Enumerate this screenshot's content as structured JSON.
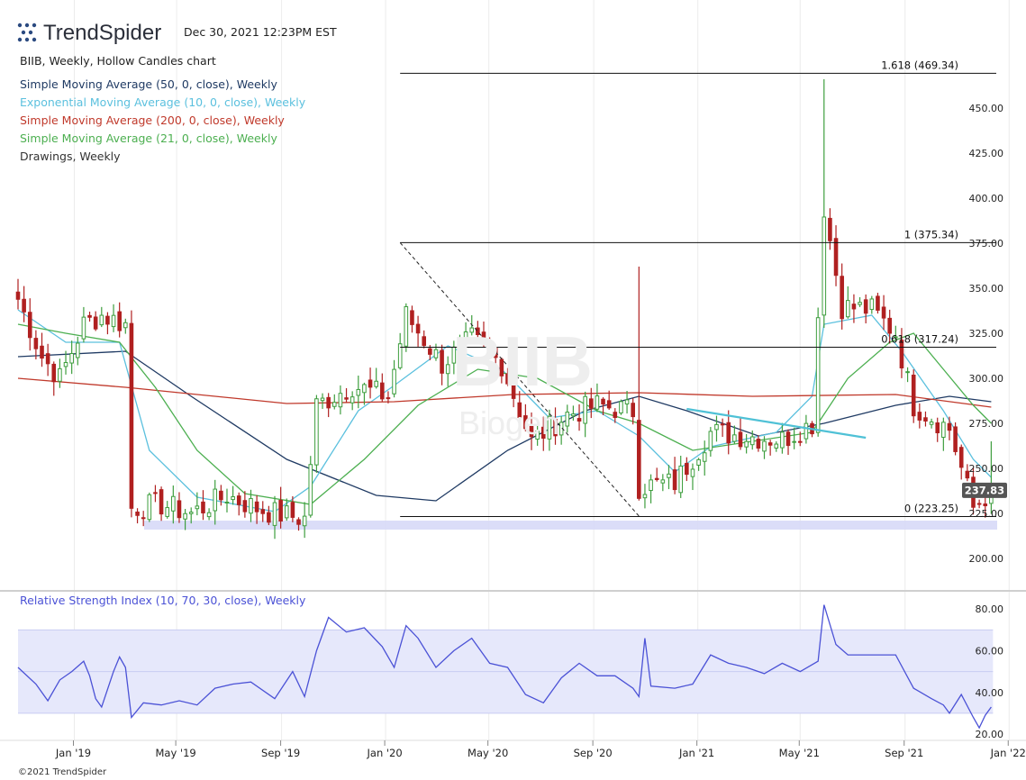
{
  "header": {
    "logo_text": "TrendSpider",
    "timestamp": "Dec 30, 2021 12:23PM EST",
    "chart_title": "BIIB, Weekly, Hollow Candles chart",
    "watermark_symbol": "BIIB",
    "watermark_name": "Biogen"
  },
  "legend": [
    {
      "label": "Simple Moving Average (50, 0, close), Weekly",
      "color": "#1f3a63"
    },
    {
      "label": "Exponential Moving Average (10, 0, close), Weekly",
      "color": "#5bc0de"
    },
    {
      "label": "Simple Moving Average (200, 0, close), Weekly",
      "color": "#c0392b"
    },
    {
      "label": "Simple Moving Average (21, 0, close), Weekly",
      "color": "#4caf50"
    },
    {
      "label": "Drawings, Weekly",
      "color": "#333333"
    }
  ],
  "colors": {
    "up": "#3e9e3e",
    "down": "#b02020",
    "fib": "#111111",
    "trend": "#4fc1d6",
    "support_zone": "#d7d9f7",
    "rsi_line": "#4b52d6",
    "rsi_band": "#e6e8fb",
    "price_badge": "#555555"
  },
  "footer": {
    "copyright": "©2021 TrendSpider"
  },
  "chart_data": {
    "type": "candlestick",
    "symbol": "BIIB",
    "interval": "Weekly",
    "x_ticks": [
      "Jan '19",
      "May '19",
      "Sep '19",
      "Jan '20",
      "May '20",
      "Sep '20",
      "Jan '21",
      "May '21",
      "Sep '21",
      "Jan '22"
    ],
    "y_ticks": [
      "200.00",
      "225.00",
      "250.00",
      "275.00",
      "300.00",
      "325.00",
      "350.00",
      "375.00",
      "400.00",
      "425.00",
      "450.00"
    ],
    "ylim": [
      190,
      478
    ],
    "last_price": "237.83",
    "fib_levels": [
      {
        "label": "1.618 (469.34)",
        "value": 469.34
      },
      {
        "label": "1 (375.34)",
        "value": 375.34
      },
      {
        "label": "0.618 (317.24)",
        "value": 317.24
      },
      {
        "label": "0 (223.25)",
        "value": 223.25
      }
    ],
    "support_zone": [
      216,
      221
    ],
    "diagonal_line": {
      "from": [
        "2020-02-01",
        375.3
      ],
      "to": [
        "2020-11-07",
        223.5
      ]
    },
    "trendline": {
      "from": [
        "2021-01-02",
        283
      ],
      "to": [
        "2021-07-31",
        267
      ]
    },
    "anchors": [
      {
        "date": "2018-11-10",
        "price": 344
      },
      {
        "date": "2018-12-08",
        "price": 312
      },
      {
        "date": "2018-12-29",
        "price": 300
      },
      {
        "date": "2019-01-26",
        "price": 330
      },
      {
        "date": "2019-02-16",
        "price": 335
      },
      {
        "date": "2019-03-16",
        "price": 330
      },
      {
        "date": "2019-03-23",
        "price": 228
      },
      {
        "date": "2019-04-27",
        "price": 230
      },
      {
        "date": "2019-06-01",
        "price": 225
      },
      {
        "date": "2019-07-13",
        "price": 235
      },
      {
        "date": "2019-08-17",
        "price": 228
      },
      {
        "date": "2019-09-07",
        "price": 225
      },
      {
        "date": "2019-10-12",
        "price": 222
      },
      {
        "date": "2019-10-26",
        "price": 285
      },
      {
        "date": "2019-12-07",
        "price": 296
      },
      {
        "date": "2020-01-18",
        "price": 290
      },
      {
        "date": "2020-02-08",
        "price": 335
      },
      {
        "date": "2020-03-21",
        "price": 308
      },
      {
        "date": "2020-04-25",
        "price": 322
      },
      {
        "date": "2020-05-30",
        "price": 308
      },
      {
        "date": "2020-07-04",
        "price": 265
      },
      {
        "date": "2020-08-15",
        "price": 280
      },
      {
        "date": "2020-09-19",
        "price": 285
      },
      {
        "date": "2020-10-31",
        "price": 282
      },
      {
        "date": "2020-11-07",
        "price": 240
      },
      {
        "date": "2020-12-19",
        "price": 242
      },
      {
        "date": "2021-01-30",
        "price": 270
      },
      {
        "date": "2021-03-13",
        "price": 268
      },
      {
        "date": "2021-04-24",
        "price": 266
      },
      {
        "date": "2021-05-29",
        "price": 275
      },
      {
        "date": "2021-06-12",
        "price": 395
      },
      {
        "date": "2021-07-03",
        "price": 340
      },
      {
        "date": "2021-08-07",
        "price": 338
      },
      {
        "date": "2021-09-04",
        "price": 325
      },
      {
        "date": "2021-09-25",
        "price": 285
      },
      {
        "date": "2021-11-06",
        "price": 272
      },
      {
        "date": "2021-12-04",
        "price": 228
      },
      {
        "date": "2021-12-25",
        "price": 237.83
      }
    ],
    "spikes": [
      {
        "date": "2020-11-07",
        "high": 362
      },
      {
        "date": "2021-06-12",
        "high": 466
      },
      {
        "date": "2021-12-25",
        "high": 265
      }
    ],
    "moving_averages": [
      {
        "name": "Simple Moving Average (50, 0, close), Weekly",
        "points": [
          [
            "2018-11-10",
            312
          ],
          [
            "2019-03-16",
            315
          ],
          [
            "2019-06-01",
            290
          ],
          [
            "2019-09-21",
            255
          ],
          [
            "2020-01-04",
            235
          ],
          [
            "2020-03-14",
            232
          ],
          [
            "2020-06-06",
            260
          ],
          [
            "2020-09-05",
            282
          ],
          [
            "2020-11-07",
            290
          ],
          [
            "2021-01-02",
            282
          ],
          [
            "2021-03-27",
            268
          ],
          [
            "2021-06-12",
            275
          ],
          [
            "2021-09-04",
            285
          ],
          [
            "2021-11-06",
            290
          ],
          [
            "2021-12-25",
            287
          ]
        ]
      },
      {
        "name": "Exponential Moving Average (10, 0, close), Weekly",
        "points": [
          [
            "2018-11-10",
            338
          ],
          [
            "2019-01-05",
            320
          ],
          [
            "2019-03-09",
            320
          ],
          [
            "2019-04-13",
            260
          ],
          [
            "2019-06-08",
            234
          ],
          [
            "2019-09-07",
            226
          ],
          [
            "2019-10-19",
            240
          ],
          [
            "2019-12-14",
            282
          ],
          [
            "2020-01-25",
            296
          ],
          [
            "2020-03-28",
            318
          ],
          [
            "2020-05-30",
            305
          ],
          [
            "2020-07-25",
            278
          ],
          [
            "2020-09-19",
            282
          ],
          [
            "2020-11-07",
            268
          ],
          [
            "2020-12-19",
            248
          ],
          [
            "2021-01-30",
            262
          ],
          [
            "2021-04-17",
            270
          ],
          [
            "2021-05-29",
            290
          ],
          [
            "2021-06-12",
            330
          ],
          [
            "2021-08-07",
            335
          ],
          [
            "2021-09-11",
            315
          ],
          [
            "2021-10-30",
            282
          ],
          [
            "2021-12-04",
            255
          ],
          [
            "2021-12-25",
            245
          ]
        ]
      },
      {
        "name": "Simple Moving Average (200, 0, close), Weekly",
        "points": [
          [
            "2018-11-10",
            300
          ],
          [
            "2019-03-16",
            295
          ],
          [
            "2019-09-21",
            286
          ],
          [
            "2020-01-25",
            287
          ],
          [
            "2020-06-13",
            291
          ],
          [
            "2020-11-07",
            292
          ],
          [
            "2021-03-20",
            290
          ],
          [
            "2021-09-04",
            291
          ],
          [
            "2021-12-25",
            284
          ]
        ]
      },
      {
        "name": "Simple Moving Average (21, 0, close), Weekly",
        "points": [
          [
            "2018-11-10",
            330
          ],
          [
            "2019-01-05",
            325
          ],
          [
            "2019-03-09",
            320
          ],
          [
            "2019-04-20",
            295
          ],
          [
            "2019-06-08",
            260
          ],
          [
            "2019-08-03",
            236
          ],
          [
            "2019-10-19",
            230
          ],
          [
            "2019-12-21",
            255
          ],
          [
            "2020-02-22",
            285
          ],
          [
            "2020-05-02",
            305
          ],
          [
            "2020-07-11",
            300
          ],
          [
            "2020-09-19",
            282
          ],
          [
            "2020-11-07",
            275
          ],
          [
            "2021-01-09",
            260
          ],
          [
            "2021-03-20",
            265
          ],
          [
            "2021-05-29",
            270
          ],
          [
            "2021-07-10",
            300
          ],
          [
            "2021-08-28",
            320
          ],
          [
            "2021-09-25",
            325
          ],
          [
            "2021-10-30",
            305
          ],
          [
            "2021-12-04",
            285
          ],
          [
            "2021-12-25",
            275
          ]
        ]
      }
    ],
    "rsi": {
      "label": "Relative Strength Index (10, 70, 30, close), Weekly",
      "y_ticks": [
        "20.00",
        "40.00",
        "60.00",
        "80.00"
      ],
      "ylim": [
        17,
        87
      ],
      "overbought": 70,
      "oversold": 30,
      "midline": 50,
      "points": [
        [
          "2018-11-10",
          52
        ],
        [
          "2018-12-01",
          44
        ],
        [
          "2018-12-15",
          36
        ],
        [
          "2018-12-29",
          46
        ],
        [
          "2019-01-12",
          50
        ],
        [
          "2019-01-26",
          55
        ],
        [
          "2019-02-02",
          48
        ],
        [
          "2019-02-09",
          37
        ],
        [
          "2019-02-16",
          33
        ],
        [
          "2019-03-02",
          50
        ],
        [
          "2019-03-09",
          57
        ],
        [
          "2019-03-16",
          52
        ],
        [
          "2019-03-23",
          28
        ],
        [
          "2019-04-06",
          35
        ],
        [
          "2019-04-27",
          34
        ],
        [
          "2019-05-18",
          36
        ],
        [
          "2019-06-08",
          34
        ],
        [
          "2019-06-29",
          42
        ],
        [
          "2019-07-20",
          44
        ],
        [
          "2019-08-10",
          45
        ],
        [
          "2019-09-07",
          37
        ],
        [
          "2019-09-28",
          50
        ],
        [
          "2019-10-12",
          38
        ],
        [
          "2019-10-26",
          60
        ],
        [
          "2019-11-09",
          76
        ],
        [
          "2019-11-30",
          69
        ],
        [
          "2019-12-21",
          71
        ],
        [
          "2020-01-11",
          62
        ],
        [
          "2020-01-25",
          52
        ],
        [
          "2020-02-08",
          72
        ],
        [
          "2020-02-22",
          66
        ],
        [
          "2020-03-14",
          52
        ],
        [
          "2020-04-04",
          60
        ],
        [
          "2020-04-25",
          66
        ],
        [
          "2020-05-16",
          54
        ],
        [
          "2020-06-06",
          52
        ],
        [
          "2020-06-27",
          39
        ],
        [
          "2020-07-18",
          35
        ],
        [
          "2020-08-08",
          47
        ],
        [
          "2020-08-29",
          54
        ],
        [
          "2020-09-19",
          48
        ],
        [
          "2020-10-10",
          48
        ],
        [
          "2020-10-31",
          42
        ],
        [
          "2020-11-07",
          38
        ],
        [
          "2020-11-14",
          66
        ],
        [
          "2020-11-21",
          43
        ],
        [
          "2020-12-19",
          42
        ],
        [
          "2021-01-09",
          44
        ],
        [
          "2021-01-30",
          58
        ],
        [
          "2021-02-20",
          54
        ],
        [
          "2021-03-13",
          52
        ],
        [
          "2021-04-03",
          49
        ],
        [
          "2021-04-24",
          54
        ],
        [
          "2021-05-15",
          50
        ],
        [
          "2021-06-05",
          55
        ],
        [
          "2021-06-12",
          82
        ],
        [
          "2021-06-26",
          63
        ],
        [
          "2021-07-10",
          58
        ],
        [
          "2021-08-07",
          58
        ],
        [
          "2021-09-04",
          58
        ],
        [
          "2021-09-25",
          42
        ],
        [
          "2021-10-16",
          37
        ],
        [
          "2021-10-30",
          34
        ],
        [
          "2021-11-06",
          30
        ],
        [
          "2021-11-20",
          39
        ],
        [
          "2021-12-04",
          28
        ],
        [
          "2021-12-11",
          23
        ],
        [
          "2021-12-18",
          29
        ],
        [
          "2021-12-25",
          33
        ]
      ]
    }
  }
}
